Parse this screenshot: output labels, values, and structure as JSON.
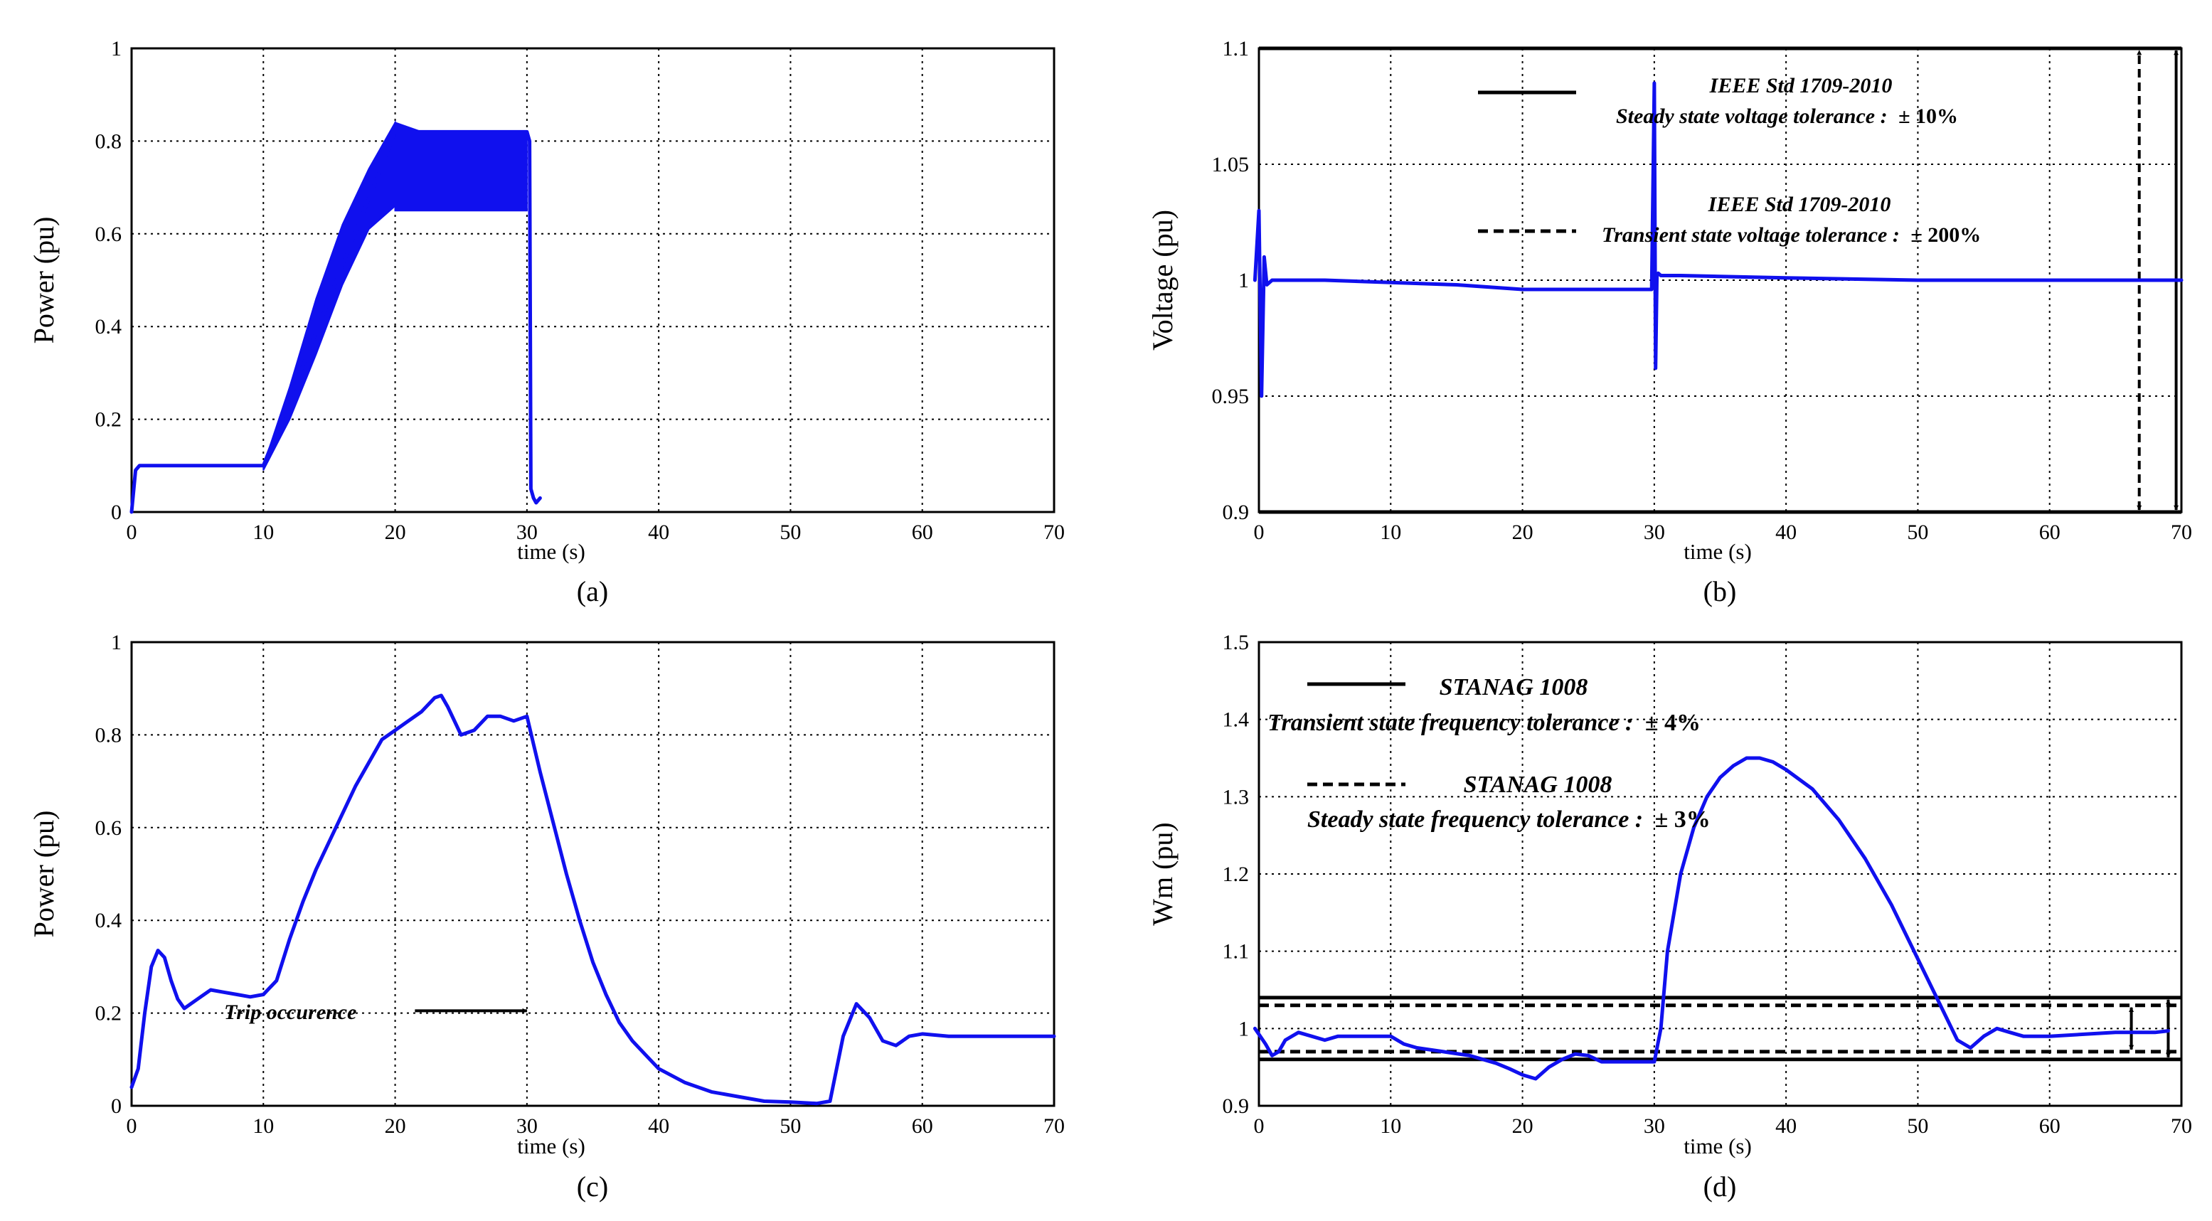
{
  "chart_data": [
    {
      "id": "a",
      "type": "line",
      "panel_label": "(a)",
      "title": "",
      "xlabel": "time (s)",
      "ylabel": "Power (pu)",
      "xlim": [
        0,
        70
      ],
      "ylim": [
        0,
        1
      ],
      "xticks": [
        0,
        10,
        20,
        30,
        40,
        50,
        60,
        70
      ],
      "yticks": [
        0,
        0.2,
        0.4,
        0.6,
        0.8,
        1
      ],
      "ytick_labels": [
        "0",
        "0.2",
        "0.4",
        "0.6",
        "0.8",
        "1"
      ],
      "grid": true,
      "series": [
        {
          "name": "power",
          "color": "#1010ee",
          "x": [
            0,
            0.3,
            0.6,
            10,
            20,
            30,
            30.2,
            30.3,
            30.5,
            30.7,
            31
          ],
          "y": [
            0,
            0.09,
            0.1,
            0.1,
            0.82,
            0.82,
            0.8,
            0.05,
            0.03,
            0.02,
            0.03
          ]
        }
      ],
      "bands": [
        {
          "x": [
            10,
            12,
            14,
            16,
            18,
            20
          ],
          "lower": [
            0.09,
            0.2,
            0.34,
            0.49,
            0.61,
            0.66
          ],
          "upper": [
            0.1,
            0.27,
            0.46,
            0.62,
            0.74,
            0.84
          ]
        },
        {
          "x": [
            20,
            22,
            24,
            26,
            28,
            30
          ],
          "lower": [
            0.65,
            0.65,
            0.65,
            0.65,
            0.65,
            0.65
          ],
          "upper": [
            0.84,
            0.82,
            0.82,
            0.82,
            0.82,
            0.82
          ]
        }
      ]
    },
    {
      "id": "b",
      "type": "line",
      "panel_label": "(b)",
      "title": "",
      "xlabel": "time (s)",
      "ylabel": "Voltage (pu)",
      "xlim": [
        0,
        70
      ],
      "ylim": [
        0.9,
        1.1
      ],
      "xticks": [
        0,
        10,
        20,
        30,
        40,
        50,
        60,
        70
      ],
      "yticks": [
        0.9,
        0.95,
        1,
        1.05,
        1.1
      ],
      "ytick_labels": [
        "0.9",
        "0.95",
        "1",
        "1.05",
        "1.1"
      ],
      "grid": true,
      "series": [
        {
          "name": "voltage",
          "color": "#1010ee",
          "x": [
            -0.3,
            0,
            0.2,
            0.4,
            0.6,
            1,
            5,
            10,
            15,
            20,
            25,
            29.8,
            30,
            30.1,
            30.2,
            30.3,
            30.5,
            32,
            40,
            50,
            60,
            70
          ],
          "y": [
            1,
            1.03,
            0.95,
            1.01,
            0.998,
            1,
            1,
            0.999,
            0.998,
            0.996,
            0.996,
            0.996,
            1.085,
            0.962,
            1.002,
            1.003,
            1.002,
            1.002,
            1.001,
            1,
            1,
            1
          ]
        }
      ],
      "hlines": [
        {
          "y": 1.1,
          "style": "solid"
        },
        {
          "y": 0.9,
          "style": "solid"
        }
      ],
      "arrows": [
        {
          "x": 66.8,
          "y1": 0.9,
          "y2": 1.1,
          "style": "dashed"
        },
        {
          "x": 69.6,
          "y1": 0.9,
          "y2": 1.1,
          "style": "solid"
        }
      ],
      "legend": [
        {
          "style": "solid",
          "line1": "IEEE Std 1709-2010",
          "line2": "Steady state voltage tolerance :",
          "value": "± 10%"
        },
        {
          "style": "dashed",
          "line1": "IEEE Std 1709-2010",
          "line2": "Transient state voltage tolerance :",
          "value": "± 200%"
        }
      ]
    },
    {
      "id": "c",
      "type": "line",
      "panel_label": "(c)",
      "title": "",
      "xlabel": "time (s)",
      "ylabel": "Power (pu)",
      "xlim": [
        0,
        70
      ],
      "ylim": [
        0,
        1
      ],
      "xticks": [
        0,
        10,
        20,
        30,
        40,
        50,
        60,
        70
      ],
      "yticks": [
        0,
        0.2,
        0.4,
        0.6,
        0.8,
        1
      ],
      "ytick_labels": [
        "0",
        "0.2",
        "0.4",
        "0.6",
        "0.8",
        "1"
      ],
      "grid": true,
      "series": [
        {
          "name": "power",
          "color": "#1010ee",
          "x": [
            0,
            0.5,
            1,
            1.5,
            2,
            2.5,
            3,
            3.5,
            4,
            5,
            6,
            7,
            8,
            9,
            10,
            11,
            12,
            13,
            14,
            15,
            16,
            17,
            18,
            19,
            20,
            21,
            22,
            23,
            23.5,
            24,
            25,
            26,
            27,
            28,
            29,
            30,
            30.5,
            31,
            32,
            33,
            34,
            35,
            36,
            37,
            38,
            39,
            40,
            42,
            44,
            46,
            48,
            50,
            52,
            53,
            54,
            55,
            56,
            57,
            58,
            59,
            60,
            62,
            65,
            70
          ],
          "y": [
            0.04,
            0.08,
            0.2,
            0.3,
            0.335,
            0.32,
            0.27,
            0.23,
            0.21,
            0.23,
            0.25,
            0.245,
            0.24,
            0.235,
            0.24,
            0.27,
            0.36,
            0.44,
            0.51,
            0.57,
            0.63,
            0.69,
            0.74,
            0.79,
            0.81,
            0.83,
            0.85,
            0.88,
            0.885,
            0.86,
            0.8,
            0.81,
            0.84,
            0.84,
            0.83,
            0.84,
            0.78,
            0.72,
            0.61,
            0.5,
            0.4,
            0.31,
            0.24,
            0.18,
            0.14,
            0.11,
            0.08,
            0.05,
            0.03,
            0.02,
            0.01,
            0.008,
            0.005,
            0.01,
            0.15,
            0.22,
            0.19,
            0.14,
            0.13,
            0.15,
            0.155,
            0.15,
            0.15,
            0.15
          ]
        }
      ],
      "annotation": {
        "text": "Trip occurence",
        "arrow_from": [
          21.5,
          0.205
        ],
        "arrow_to": [
          30,
          0.205
        ]
      }
    },
    {
      "id": "d",
      "type": "line",
      "panel_label": "(d)",
      "title": "",
      "xlabel": "time (s)",
      "ylabel": "Wm (pu)",
      "xlim": [
        0,
        70
      ],
      "ylim": [
        0.9,
        1.5
      ],
      "xticks": [
        0,
        10,
        20,
        30,
        40,
        50,
        60,
        70
      ],
      "yticks": [
        0.9,
        1,
        1.1,
        1.2,
        1.3,
        1.4,
        1.5
      ],
      "ytick_labels": [
        "0.9",
        "1",
        "1.1",
        "1.2",
        "1.3",
        "1.4",
        "1.5"
      ],
      "grid": true,
      "series": [
        {
          "name": "wm",
          "color": "#1010ee",
          "x": [
            -0.3,
            0.5,
            1,
            1.5,
            2,
            3,
            4,
            5,
            6,
            8,
            10,
            11,
            12,
            14,
            16,
            18,
            19,
            20,
            21,
            22,
            23,
            24,
            25,
            26,
            27,
            28,
            29,
            30,
            30.5,
            31,
            32,
            33,
            34,
            35,
            36,
            37,
            38,
            39,
            40,
            42,
            44,
            46,
            48,
            50,
            52,
            53,
            54,
            55,
            56,
            57,
            58,
            60,
            65,
            68,
            69
          ],
          "y": [
            1.0,
            0.98,
            0.965,
            0.97,
            0.985,
            0.995,
            0.99,
            0.985,
            0.99,
            0.99,
            0.99,
            0.98,
            0.975,
            0.97,
            0.965,
            0.955,
            0.948,
            0.94,
            0.935,
            0.95,
            0.96,
            0.967,
            0.965,
            0.957,
            0.957,
            0.957,
            0.957,
            0.957,
            1.0,
            1.1,
            1.2,
            1.26,
            1.3,
            1.325,
            1.34,
            1.35,
            1.35,
            1.345,
            1.335,
            1.31,
            1.27,
            1.22,
            1.16,
            1.09,
            1.02,
            0.985,
            0.975,
            0.99,
            1.0,
            0.995,
            0.99,
            0.99,
            0.995,
            0.995,
            0.997
          ]
        }
      ],
      "hlines": [
        {
          "y": 1.04,
          "style": "solid"
        },
        {
          "y": 0.96,
          "style": "solid"
        },
        {
          "y": 1.03,
          "style": "dashed"
        },
        {
          "y": 0.97,
          "style": "dashed"
        }
      ],
      "arrows": [
        {
          "x": 66.2,
          "y1": 0.97,
          "y2": 1.03,
          "style": "solid"
        },
        {
          "x": 69.0,
          "y1": 0.96,
          "y2": 1.04,
          "style": "solid"
        }
      ],
      "legend": [
        {
          "style": "solid",
          "line1": "STANAG 1008",
          "line2": "Transient state frequency tolerance :",
          "value": "± 4%"
        },
        {
          "style": "dashed",
          "line1": "STANAG 1008",
          "line2": "Steady state frequency tolerance :",
          "value": "± 3%"
        }
      ]
    }
  ]
}
